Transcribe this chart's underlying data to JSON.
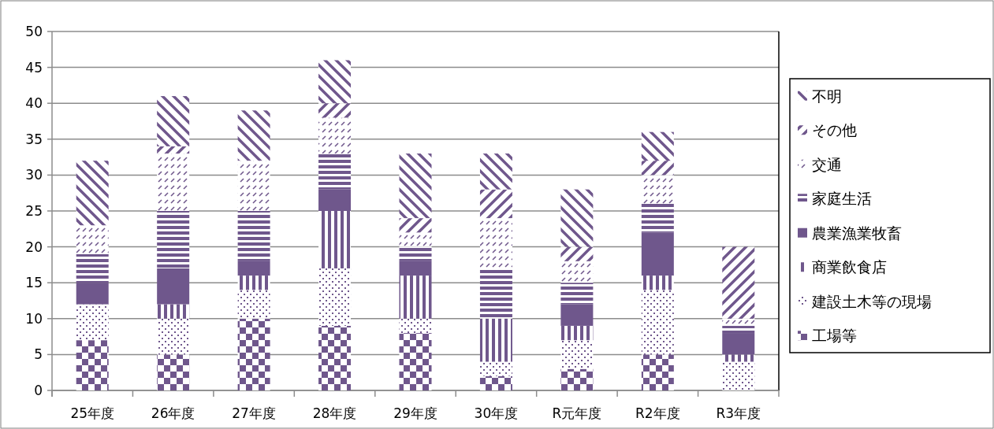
{
  "chart_data": {
    "type": "bar",
    "stacked": true,
    "categories": [
      "25年度",
      "26年度",
      "27年度",
      "28年度",
      "29年度",
      "30年度",
      "R元年度",
      "R2年度",
      "R3年度"
    ],
    "series": [
      {
        "name": "工場等",
        "color": "#6f578c",
        "values": [
          7,
          5,
          10,
          9,
          8,
          2,
          3,
          5,
          0
        ]
      },
      {
        "name": "建設土木等の現場",
        "color": "#6f578c",
        "values": [
          5,
          5,
          4,
          8,
          2,
          2,
          4,
          9,
          4
        ]
      },
      {
        "name": "商業飲食店",
        "color": "#6f578c",
        "values": [
          0,
          2,
          2,
          8,
          6,
          6,
          2,
          2,
          1
        ]
      },
      {
        "name": "農業漁業牧畜",
        "color": "#6f578c",
        "values": [
          3,
          5,
          2,
          3,
          2,
          0,
          3,
          6,
          3
        ]
      },
      {
        "name": "家庭生活",
        "color": "#6f578c",
        "values": [
          4,
          8,
          7,
          5,
          2,
          7,
          3,
          4,
          1
        ]
      },
      {
        "name": "交通",
        "color": "#6f578c",
        "values": [
          4,
          8,
          7,
          5,
          2,
          7,
          3,
          4,
          1
        ]
      },
      {
        "name": "その他",
        "color": "#6f578c",
        "values": [
          0,
          1,
          0,
          2,
          2,
          4,
          2,
          2,
          10
        ]
      },
      {
        "name": "不明",
        "color": "#6f578c",
        "values": [
          9,
          7,
          7,
          6,
          9,
          5,
          8,
          4,
          0
        ]
      }
    ],
    "ylim": [
      0,
      50
    ],
    "yticks": [
      0,
      5,
      10,
      15,
      20,
      25,
      30,
      35,
      40,
      45,
      50
    ],
    "grid": "y",
    "legend": "right"
  }
}
